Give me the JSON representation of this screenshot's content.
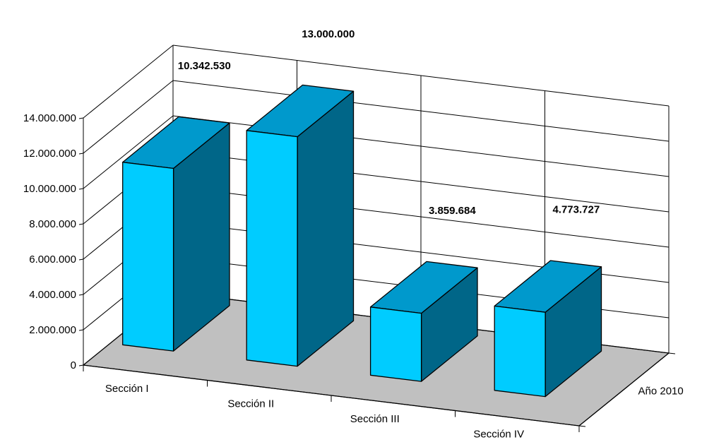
{
  "chart_data": {
    "type": "bar",
    "categories": [
      "Sección I",
      "Sección II",
      "Sección III",
      "Sección IV"
    ],
    "series": [
      {
        "name": "Año 2010",
        "values": [
          10342530,
          13000000,
          3859684,
          4773727
        ]
      }
    ],
    "data_labels": [
      "10.342.530",
      "13.000.000",
      "3.859.684",
      "4.773.727"
    ],
    "ylim": [
      0,
      14000000
    ],
    "yticks": [
      0,
      2000000,
      4000000,
      6000000,
      8000000,
      10000000,
      12000000,
      14000000
    ],
    "ytick_labels": [
      "0",
      "2.000.000",
      "4.000.000",
      "6.000.000",
      "8.000.000",
      "10.000.000",
      "12.000.000",
      "14.000.000"
    ],
    "depth_axis_label": "Año 2010",
    "grid": true,
    "style": "3d-column",
    "colors": {
      "bar_front": "#00CCFF",
      "bar_top": "#0099CC",
      "bar_side": "#006688",
      "floor": "#C0C0C0",
      "outline": "#000000"
    }
  }
}
